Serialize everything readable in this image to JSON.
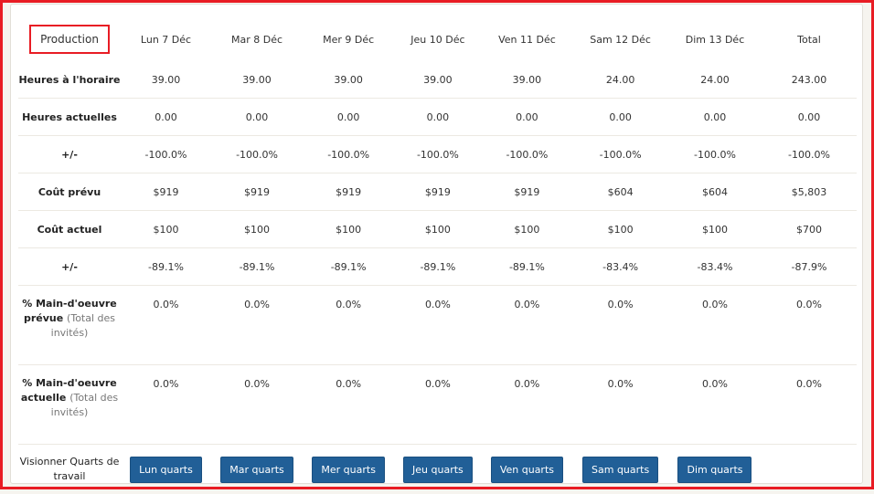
{
  "header": {
    "section": "Production",
    "days": [
      "Lun 7 Déc",
      "Mar 8 Déc",
      "Mer 9 Déc",
      "Jeu 10 Déc",
      "Ven 11 Déc",
      "Sam 12 Déc",
      "Dim 13 Déc"
    ],
    "total": "Total"
  },
  "rows": [
    {
      "label": "Heures à l'horaire",
      "values": [
        "39.00",
        "39.00",
        "39.00",
        "39.00",
        "39.00",
        "24.00",
        "24.00",
        "243.00"
      ]
    },
    {
      "label": "Heures actuelles",
      "values": [
        "0.00",
        "0.00",
        "0.00",
        "0.00",
        "0.00",
        "0.00",
        "0.00",
        "0.00"
      ]
    },
    {
      "label": "+/-",
      "values": [
        "-100.0%",
        "-100.0%",
        "-100.0%",
        "-100.0%",
        "-100.0%",
        "-100.0%",
        "-100.0%",
        "-100.0%"
      ]
    },
    {
      "label": "Coût prévu",
      "values": [
        "$919",
        "$919",
        "$919",
        "$919",
        "$919",
        "$604",
        "$604",
        "$5,803"
      ]
    },
    {
      "label": "Coût actuel",
      "values": [
        "$100",
        "$100",
        "$100",
        "$100",
        "$100",
        "$100",
        "$100",
        "$700"
      ]
    },
    {
      "label": "+/-",
      "values": [
        "-89.1%",
        "-89.1%",
        "-89.1%",
        "-89.1%",
        "-89.1%",
        "-83.4%",
        "-83.4%",
        "-87.9%"
      ]
    }
  ],
  "tall_rows": [
    {
      "label": "% Main-d'oeuvre prévue",
      "note": "(Total des invités)",
      "values": [
        "0.0%",
        "0.0%",
        "0.0%",
        "0.0%",
        "0.0%",
        "0.0%",
        "0.0%",
        "0.0%"
      ]
    },
    {
      "label": "% Main-d'oeuvre actuelle",
      "note": "(Total des invités)",
      "values": [
        "0.0%",
        "0.0%",
        "0.0%",
        "0.0%",
        "0.0%",
        "0.0%",
        "0.0%",
        "0.0%"
      ]
    }
  ],
  "shifts": {
    "label": "Visionner Quarts de travail",
    "buttons": [
      "Lun quarts",
      "Mar quarts",
      "Mer quarts",
      "Jeu quarts",
      "Ven quarts",
      "Sam quarts",
      "Dim quarts"
    ]
  },
  "colors": {
    "button": "#215f97",
    "highlight": "#e81c24"
  }
}
